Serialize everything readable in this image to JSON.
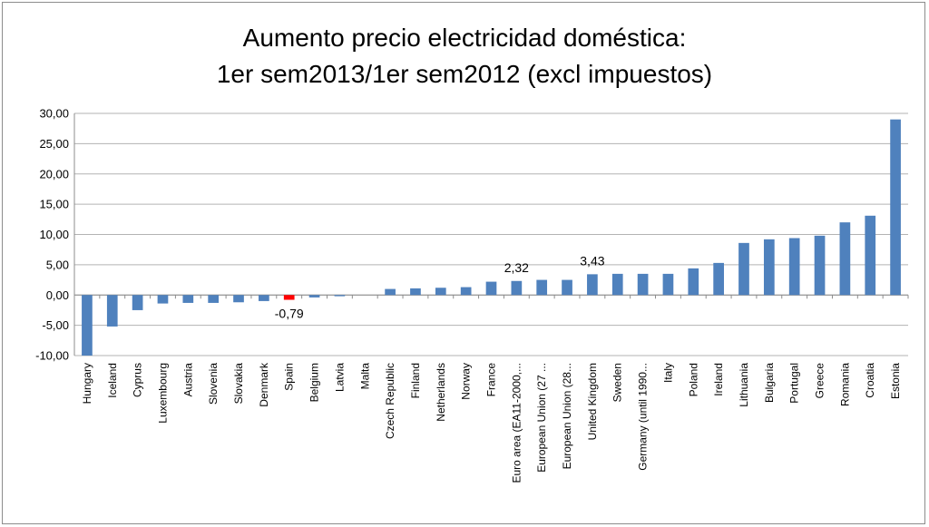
{
  "chart_data": {
    "type": "bar",
    "title_line1": "Aumento precio electricidad doméstica:",
    "title_line2": "1er sem2013/1er sem2012 (excl impuestos)",
    "xlabel": "",
    "ylabel": "",
    "ylim": [
      -10,
      30
    ],
    "yticks": [
      "30,00",
      "25,00",
      "20,00",
      "15,00",
      "10,00",
      "5,00",
      "0,00",
      "-5,00",
      "-10,00"
    ],
    "grid": true,
    "legend": "none",
    "bar_color": "#4f81bd",
    "highlight_color": "#ff0000",
    "highlight_category": "Spain",
    "categories": [
      "Hungary",
      "Iceland",
      "Cyprus",
      "Luxembourg",
      "Austria",
      "Slovenia",
      "Slovakia",
      "Denmark",
      "Spain",
      "Belgium",
      "Latvia",
      "Malta",
      "Czech Republic",
      "Finland",
      "Netherlands",
      "Norway",
      "France",
      "Euro area (EA11-2000,...",
      "European Union (27 ...",
      "European Union (28...",
      "United Kingdom",
      "Sweden",
      "Germany (until 1990...",
      "Italy",
      "Poland",
      "Ireland",
      "Lithuania",
      "Bulgaria",
      "Portugal",
      "Greece",
      "Romania",
      "Croatia",
      "Estonia"
    ],
    "values": [
      -10.0,
      -5.2,
      -2.5,
      -1.4,
      -1.3,
      -1.3,
      -1.2,
      -1.0,
      -0.79,
      -0.4,
      -0.2,
      0.0,
      1.0,
      1.1,
      1.2,
      1.3,
      2.2,
      2.32,
      2.5,
      2.5,
      3.43,
      3.5,
      3.5,
      3.5,
      4.4,
      5.3,
      8.6,
      9.2,
      9.4,
      9.8,
      12.0,
      13.1,
      29.0
    ],
    "data_labels": [
      {
        "category": "Spain",
        "text": "-0,79"
      },
      {
        "category": "Euro area (EA11-2000,...",
        "text": "2,32"
      },
      {
        "category": "United Kingdom",
        "text": "3,43"
      }
    ]
  }
}
